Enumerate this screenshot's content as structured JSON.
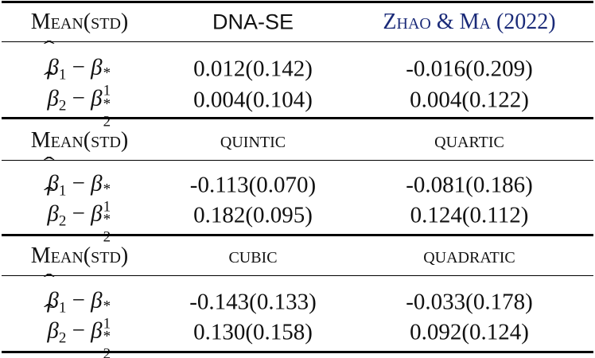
{
  "table": {
    "blocks": [
      {
        "header": [
          "Mean(std)",
          "DNA-SE",
          "Zhao & Ma (2022)"
        ],
        "rows": [
          {
            "label": {
              "estimate": "β",
              "estimate_index": "1",
              "operator": "−",
              "truth": "β",
              "truth_index": "1",
              "truth_mark": "*"
            },
            "cells": [
              "0.012(0.142)",
              "-0.016(0.209)"
            ]
          },
          {
            "label": {
              "estimate": "β",
              "estimate_index": "2",
              "operator": "−",
              "truth": "β",
              "truth_index": "2",
              "truth_mark": "*"
            },
            "cells": [
              "0.004(0.104)",
              "0.004(0.122)"
            ]
          }
        ]
      },
      {
        "header": [
          "Mean(std)",
          "quintic",
          "quartic"
        ],
        "rows": [
          {
            "label": {
              "estimate": "β",
              "estimate_index": "1",
              "operator": "−",
              "truth": "β",
              "truth_index": "1",
              "truth_mark": "*"
            },
            "cells": [
              "-0.113(0.070)",
              "-0.081(0.186)"
            ]
          },
          {
            "label": {
              "estimate": "β",
              "estimate_index": "2",
              "operator": "−",
              "truth": "β",
              "truth_index": "2",
              "truth_mark": "*"
            },
            "cells": [
              "0.182(0.095)",
              "0.124(0.112)"
            ]
          }
        ]
      },
      {
        "header": [
          "Mean(std)",
          "cubic",
          "quadratic"
        ],
        "rows": [
          {
            "label": {
              "estimate": "β",
              "estimate_index": "1",
              "operator": "−",
              "truth": "β",
              "truth_index": "1",
              "truth_mark": "*"
            },
            "cells": [
              "-0.143(0.133)",
              "-0.033(0.178)"
            ]
          },
          {
            "label": {
              "estimate": "β",
              "estimate_index": "2",
              "operator": "−",
              "truth": "β",
              "truth_index": "2",
              "truth_mark": "*"
            },
            "cells": [
              "0.130(0.158)",
              "0.092(0.124)"
            ]
          }
        ]
      }
    ]
  }
}
